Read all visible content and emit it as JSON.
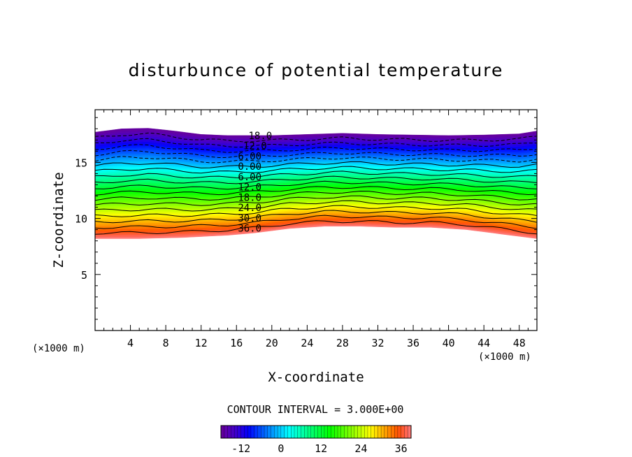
{
  "chart_data": {
    "type": "contour",
    "title": "disturbunce of potential temperature",
    "xlabel": "X-coordinate",
    "ylabel": "Z-coordinate",
    "x_unit": "(×1000 m)",
    "y_unit": "(×1000 m)",
    "xlim": [
      0,
      50
    ],
    "ylim": [
      0,
      19.7
    ],
    "x_ticks": [
      "4",
      "8",
      "12",
      "16",
      "20",
      "24",
      "28",
      "32",
      "36",
      "40",
      "44",
      "48"
    ],
    "y_ticks": [
      "5",
      "10",
      "15"
    ],
    "contour_interval_text": "CONTOUR INTERVAL = 3.000E+00",
    "contour_labels": [
      "18.0",
      "12.0",
      "6.00",
      "0.00",
      "6.00",
      "12.0",
      "18.0",
      "24.0",
      "30.0",
      "36.0"
    ],
    "colorbar_ticks": [
      "-12",
      "0",
      "12",
      "24",
      "36"
    ],
    "colorbar_range": [
      -18,
      39
    ],
    "field_top_z": [
      [
        0,
        17.7
      ],
      [
        3,
        18.0
      ],
      [
        6,
        18.05
      ],
      [
        9,
        17.8
      ],
      [
        12,
        17.5
      ],
      [
        15,
        17.4
      ],
      [
        20,
        17.4
      ],
      [
        24,
        17.5
      ],
      [
        28,
        17.6
      ],
      [
        32,
        17.5
      ],
      [
        36,
        17.45
      ],
      [
        40,
        17.4
      ],
      [
        44,
        17.45
      ],
      [
        48,
        17.55
      ],
      [
        50,
        17.8
      ]
    ],
    "field_bottom_z": [
      [
        0,
        8.2
      ],
      [
        5,
        8.2
      ],
      [
        10,
        8.3
      ],
      [
        15,
        8.5
      ],
      [
        18,
        8.7
      ],
      [
        22,
        9.1
      ],
      [
        26,
        9.3
      ],
      [
        30,
        9.3
      ],
      [
        34,
        9.2
      ],
      [
        38,
        9.2
      ],
      [
        42,
        9.0
      ],
      [
        46,
        8.6
      ],
      [
        50,
        8.2
      ]
    ],
    "colors": {
      "negative_end": "#6600aa",
      "zero": "#00e0a0",
      "positive_end": "#ff4040",
      "bottom_edge": "#ffaaaa"
    }
  }
}
